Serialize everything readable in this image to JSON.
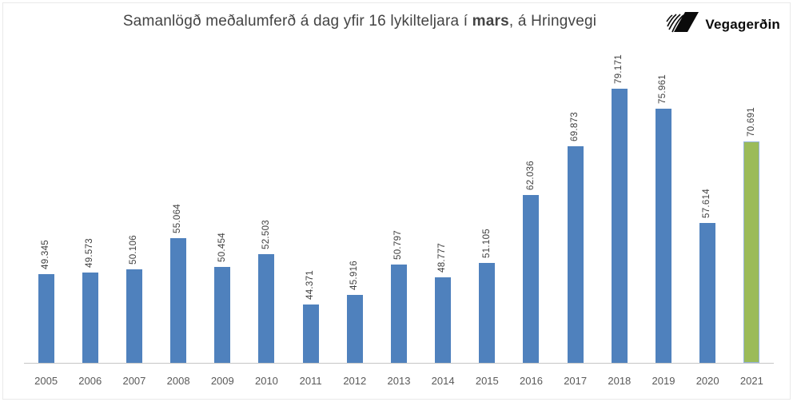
{
  "title": {
    "prefix": "Samanlögð meðalumferð á dag yfir 16 lykilteljara í ",
    "highlight": "mars",
    "suffix": ", á Hringvegi"
  },
  "logo": {
    "text": "Vegagerðin",
    "icon": "vegagerdin-road-mark-icon",
    "color": "#0b0b0b"
  },
  "chart_data": {
    "type": "bar",
    "title": "Samanlögð meðalumferð á dag yfir 16 lykilteljara í mars, á Hringvegi",
    "categories": [
      "2005",
      "2006",
      "2007",
      "2008",
      "2009",
      "2010",
      "2011",
      "2012",
      "2013",
      "2014",
      "2015",
      "2016",
      "2017",
      "2018",
      "2019",
      "2020",
      "2021"
    ],
    "values": [
      49345,
      49573,
      50106,
      55064,
      50454,
      52503,
      44371,
      45916,
      50797,
      48777,
      51105,
      62036,
      69873,
      79171,
      75961,
      57614,
      70691
    ],
    "labels": [
      "49.345",
      "49.573",
      "50.106",
      "55.064",
      "50.454",
      "52.503",
      "44.371",
      "45.916",
      "50.797",
      "48.777",
      "51.105",
      "62.036",
      "69.873",
      "79.171",
      "75.961",
      "57.614",
      "70.691"
    ],
    "xlabel": "",
    "ylabel": "",
    "ylim": [
      35000,
      85000
    ],
    "grid": false,
    "legend": "none",
    "data_labels": "rotated-90-above-bars",
    "bar_color": "#4F81BD",
    "highlight_index": 16,
    "highlight_color": "#9BBB59",
    "highlight_border": "#95B3D7",
    "axis_line_color": "#c6c6c6"
  }
}
